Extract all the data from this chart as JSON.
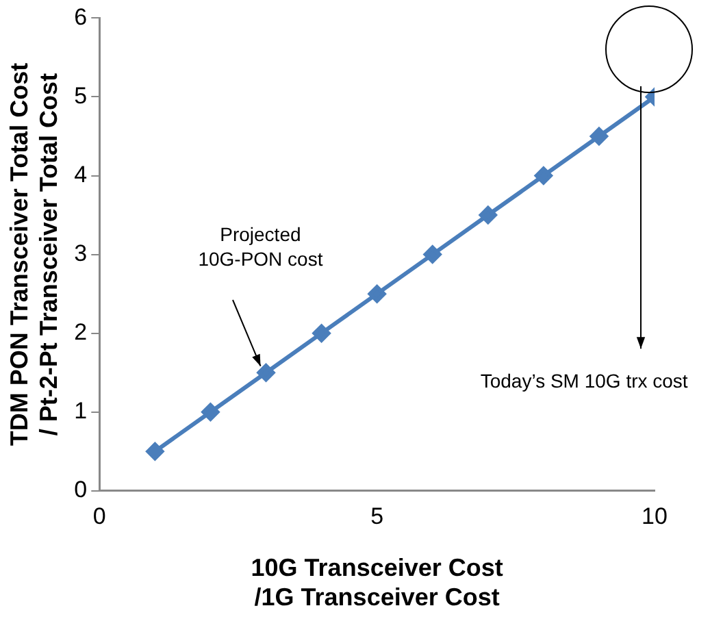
{
  "chart_data": {
    "type": "line",
    "xlabel": "10G Transceiver Cost\n/1G Transceiver Cost",
    "ylabel": "TDM PON Transceiver Total Cost\n/ Pt-2-Pt Transceiver Total Cost",
    "x": [
      1,
      2,
      3,
      4,
      5,
      6,
      7,
      8,
      9,
      10
    ],
    "series": [
      {
        "color": "#4a7ebb",
        "values": [
          0.5,
          1.0,
          1.5,
          2.0,
          2.5,
          3.0,
          3.5,
          4.0,
          4.5,
          5.0
        ]
      }
    ],
    "xlim": [
      0,
      10
    ],
    "xticks": [
      0,
      5,
      10
    ],
    "ylim": [
      0,
      6
    ],
    "yticks": [
      0,
      1,
      2,
      3,
      4,
      5,
      6
    ],
    "grid": false,
    "legend": false,
    "marker": "diamond",
    "line_style": "solid",
    "annotations": [
      "Projected\n10G-PON cost",
      "Today’s SM 10G trx cost"
    ]
  }
}
